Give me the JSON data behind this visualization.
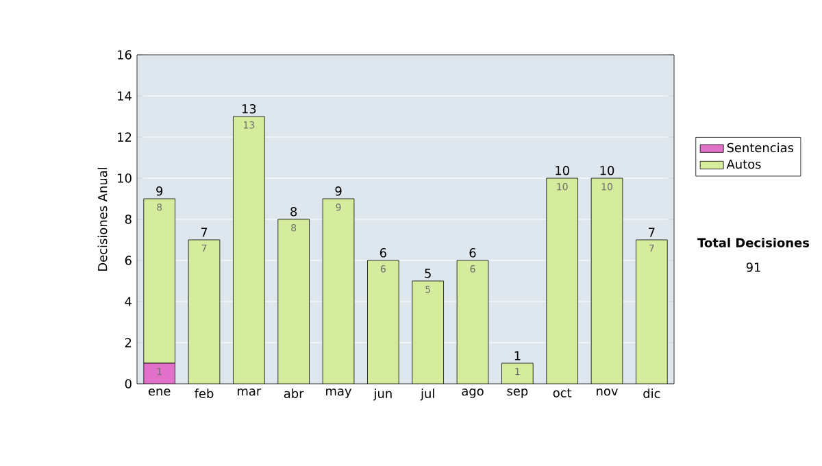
{
  "chart_data": {
    "type": "bar",
    "stacked": true,
    "ylabel": "Decisiones Anual",
    "categories": [
      "ene",
      "feb",
      "mar",
      "abr",
      "may",
      "jun",
      "jul",
      "ago",
      "sep",
      "oct",
      "nov",
      "dic"
    ],
    "series": [
      {
        "name": "Sentencias",
        "color": "#e070c8",
        "values": [
          1,
          0,
          0,
          0,
          0,
          0,
          0,
          0,
          0,
          0,
          0,
          0
        ],
        "value_labels": [
          "1",
          null,
          null,
          null,
          null,
          null,
          null,
          null,
          null,
          null,
          null,
          null
        ]
      },
      {
        "name": "Autos",
        "color": "#d4ec9c",
        "values": [
          8,
          7,
          13,
          8,
          9,
          6,
          5,
          6,
          1,
          10,
          10,
          7
        ],
        "value_labels": [
          "8",
          "7",
          "13",
          "8",
          "9",
          "6",
          "5",
          "6",
          "1",
          "10",
          "10",
          "7"
        ]
      }
    ],
    "totals": [
      "9",
      "7",
      "13",
      "8",
      "9",
      "6",
      "5",
      "6",
      "1",
      "10",
      "10",
      "7"
    ],
    "ylim": [
      0,
      16
    ],
    "yticks": [
      0,
      2,
      4,
      6,
      8,
      10,
      12,
      14,
      16
    ],
    "grid": "y",
    "legend": "right",
    "annotations": [
      "Total Decisiones",
      "91"
    ]
  }
}
